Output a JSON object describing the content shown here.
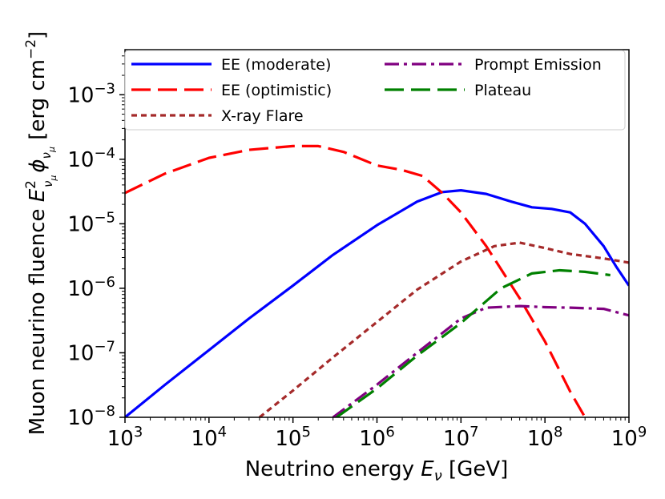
{
  "chart_data": {
    "type": "line",
    "title": "",
    "xlabel_prefix": "Neutrino energy ",
    "xlabel_symbol": "E",
    "xlabel_sub": "ν",
    "xlabel_unit": " [GeV]",
    "ylabel_prefix": "Muon neurino fluence ",
    "ylabel_unit": " [erg cm",
    "ylabel_unit_exp": "−2",
    "ylabel_unit_close": "]",
    "x_scale": "log",
    "y_scale": "log",
    "xlim": [
      1000,
      1000000000
    ],
    "ylim": [
      1e-08,
      0.005
    ],
    "x_ticks": [
      {
        "value": 1000.0,
        "base": "10",
        "exp": "3"
      },
      {
        "value": 10000.0,
        "base": "10",
        "exp": "4"
      },
      {
        "value": 100000.0,
        "base": "10",
        "exp": "5"
      },
      {
        "value": 1000000.0,
        "base": "10",
        "exp": "6"
      },
      {
        "value": 10000000.0,
        "base": "10",
        "exp": "7"
      },
      {
        "value": 100000000.0,
        "base": "10",
        "exp": "8"
      },
      {
        "value": 1000000000.0,
        "base": "10",
        "exp": "9"
      }
    ],
    "y_ticks": [
      {
        "value": 1e-08,
        "base": "10",
        "exp": "−8"
      },
      {
        "value": 1e-07,
        "base": "10",
        "exp": "−7"
      },
      {
        "value": 1e-06,
        "base": "10",
        "exp": "−6"
      },
      {
        "value": 1e-05,
        "base": "10",
        "exp": "−5"
      },
      {
        "value": 0.0001,
        "base": "10",
        "exp": "−4"
      },
      {
        "value": 0.001,
        "base": "10",
        "exp": "−3"
      }
    ],
    "legend_position": "top",
    "series": [
      {
        "name": "EE (moderate)",
        "color": "#0000ff",
        "style": "solid",
        "points": [
          [
            1000.0,
            1e-08
          ],
          [
            3000.0,
            3.2e-08
          ],
          [
            10000.0,
            1.1e-07
          ],
          [
            30000.0,
            3.4e-07
          ],
          [
            100000.0,
            1.1e-06
          ],
          [
            300000.0,
            3.3e-06
          ],
          [
            1000000.0,
            9.5e-06
          ],
          [
            3000000.0,
            2.2e-05
          ],
          [
            6000000.0,
            3.1e-05
          ],
          [
            10000000.0,
            3.3e-05
          ],
          [
            20000000.0,
            2.9e-05
          ],
          [
            40000000.0,
            2.2e-05
          ],
          [
            70000000.0,
            1.8e-05
          ],
          [
            120000000.0,
            1.7e-05
          ],
          [
            200000000.0,
            1.5e-05
          ],
          [
            300000000.0,
            1e-05
          ],
          [
            500000000.0,
            4.5e-06
          ],
          [
            700000000.0,
            2.2e-06
          ],
          [
            1000000000.0,
            1.1e-06
          ]
        ]
      },
      {
        "name": "EE (optimistic)",
        "color": "#ff0000",
        "style": "dashed",
        "points": [
          [
            1000.0,
            3e-05
          ],
          [
            3000.0,
            6e-05
          ],
          [
            10000.0,
            0.000105
          ],
          [
            30000.0,
            0.00014
          ],
          [
            100000.0,
            0.00016
          ],
          [
            200000.0,
            0.00016
          ],
          [
            400000.0,
            0.00013
          ],
          [
            1000000.0,
            8e-05
          ],
          [
            2000000.0,
            6.8e-05
          ],
          [
            3500000.0,
            5.5e-05
          ],
          [
            6000000.0,
            3e-05
          ],
          [
            10000000.0,
            1.5e-05
          ],
          [
            20000000.0,
            4.5e-06
          ],
          [
            50000000.0,
            7e-07
          ],
          [
            100000000.0,
            1.5e-07
          ],
          [
            200000000.0,
            2.5e-08
          ],
          [
            300000000.0,
            1e-08
          ]
        ]
      },
      {
        "name": "X-ray Flare",
        "color": "#a52a2a",
        "style": "dotted",
        "points": [
          [
            40000.0,
            1e-08
          ],
          [
            100000.0,
            2.6e-08
          ],
          [
            300000.0,
            8.5e-08
          ],
          [
            1000000.0,
            3e-07
          ],
          [
            3000000.0,
            9.5e-07
          ],
          [
            10000000.0,
            2.6e-06
          ],
          [
            25000000.0,
            4.5e-06
          ],
          [
            50000000.0,
            5.1e-06
          ],
          [
            100000000.0,
            4.2e-06
          ],
          [
            200000000.0,
            3.4e-06
          ],
          [
            500000000.0,
            2.9e-06
          ],
          [
            1000000000.0,
            2.5e-06
          ]
        ]
      },
      {
        "name": "Prompt Emission",
        "color": "#800080",
        "style": "dashdot",
        "points": [
          [
            300000.0,
            1e-08
          ],
          [
            1000000.0,
            3.2e-08
          ],
          [
            3000000.0,
            1e-07
          ],
          [
            10000000.0,
            3.4e-07
          ],
          [
            20000000.0,
            5e-07
          ],
          [
            50000000.0,
            5.3e-07
          ],
          [
            100000000.0,
            5.1e-07
          ],
          [
            200000000.0,
            5e-07
          ],
          [
            500000000.0,
            4.8e-07
          ],
          [
            1000000000.0,
            3.8e-07
          ]
        ]
      },
      {
        "name": "Plateau",
        "color": "#008000",
        "style": "longdash",
        "points": [
          [
            330000.0,
            1e-08
          ],
          [
            1000000.0,
            2.8e-08
          ],
          [
            3000000.0,
            9e-08
          ],
          [
            10000000.0,
            2.9e-07
          ],
          [
            30000000.0,
            1e-06
          ],
          [
            70000000.0,
            1.7e-06
          ],
          [
            150000000.0,
            1.9e-06
          ],
          [
            300000000.0,
            1.8e-06
          ],
          [
            600000000.0,
            1.6e-06
          ]
        ]
      }
    ]
  }
}
